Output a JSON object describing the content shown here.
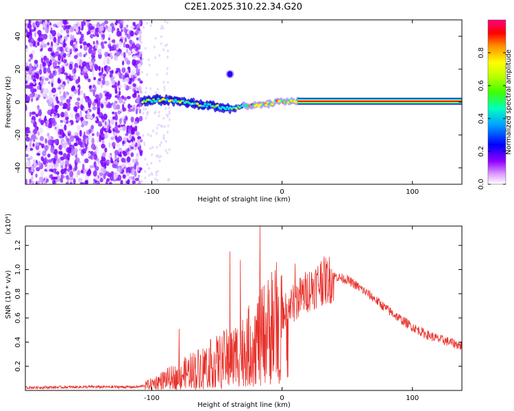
{
  "figure_title": "C2E1.2025.310.22.34.G20",
  "chart_data": [
    {
      "type": "heatmap",
      "name": "spectrogram",
      "title": "C2E1.2025.310.22.34.G20",
      "xlabel": "Height of straight line (km)",
      "ylabel": "Frequency (Hz)",
      "xlim": [
        -197,
        138
      ],
      "ylim": [
        -50,
        50
      ],
      "xticks": [
        -100,
        0,
        100
      ],
      "yticks": [
        -40,
        -20,
        0,
        20,
        40
      ],
      "colorbar": {
        "label": "Normalized spectral amplitude",
        "range": [
          0,
          1
        ],
        "ticks": [
          0.0,
          0.2,
          0.4,
          0.6,
          0.8
        ],
        "tick_labels": [
          "0.0",
          "0.2",
          "0.4",
          "0.6",
          "0.8"
        ]
      },
      "features": {
        "noise_region_x": [
          -197,
          -108
        ],
        "signal_start_x": -108,
        "steady_tone_from_x": 12,
        "steady_tone_freq_hz": 0.5,
        "blob_x": -40,
        "blob_freq_hz": 17,
        "track_points": [
          [
            -106,
            0.5
          ],
          [
            -95,
            1.5
          ],
          [
            -85,
            1
          ],
          [
            -75,
            0
          ],
          [
            -62,
            -2
          ],
          [
            -55,
            -2
          ],
          [
            -48,
            -3
          ],
          [
            -40,
            -4
          ],
          [
            -33,
            -3
          ],
          [
            -25,
            -2
          ],
          [
            -15,
            -2
          ],
          [
            -5,
            0
          ],
          [
            5,
            0.5
          ],
          [
            12,
            0.5
          ]
        ]
      },
      "colors": {
        "colormap": [
          "#ffffff",
          "#d070ff",
          "#8000ff",
          "#0000ff",
          "#00c8ff",
          "#00ff80",
          "#80ff00",
          "#ffff00",
          "#ff8000",
          "#ff0000"
        ]
      }
    },
    {
      "type": "line",
      "name": "snr",
      "xlabel": "Height of straight line (km)",
      "ylabel": "SNR (10 * v/v)",
      "scale_label": "(x10⁴)",
      "xlim": [
        -197,
        138
      ],
      "ylim": [
        0,
        1.36
      ],
      "xticks": [
        -100,
        0,
        100
      ],
      "yticks": [
        0.2,
        0.4,
        0.6,
        0.8,
        1.0,
        1.2
      ],
      "ytick_labels": [
        "0.2",
        "0.4",
        "0.6",
        "0.8",
        "1.0",
        "1.2"
      ],
      "series": [
        {
          "name": "SNR",
          "color": "#e8302a",
          "envelope_x": [
            -197,
            -150,
            -110,
            -100,
            -90,
            -80,
            -70,
            -60,
            -50,
            -40,
            -30,
            -20,
            -10,
            0,
            10,
            20,
            30,
            40,
            50,
            60,
            70,
            80,
            90,
            100,
            110,
            120,
            130,
            138
          ],
          "envelope_y": [
            0.025,
            0.03,
            0.03,
            0.06,
            0.1,
            0.13,
            0.18,
            0.22,
            0.26,
            0.3,
            0.36,
            0.45,
            0.55,
            0.65,
            0.75,
            0.85,
            0.92,
            0.95,
            0.92,
            0.85,
            0.77,
            0.68,
            0.6,
            0.53,
            0.47,
            0.43,
            0.4,
            0.37
          ],
          "peaks": [
            [
              -79,
              0.51
            ],
            [
              -40,
              1.15
            ],
            [
              -32,
              1.08
            ],
            [
              -17,
              1.38
            ],
            [
              -8,
              0.98
            ],
            [
              10,
              1.05
            ],
            [
              30,
              1.07
            ]
          ]
        }
      ]
    }
  ]
}
